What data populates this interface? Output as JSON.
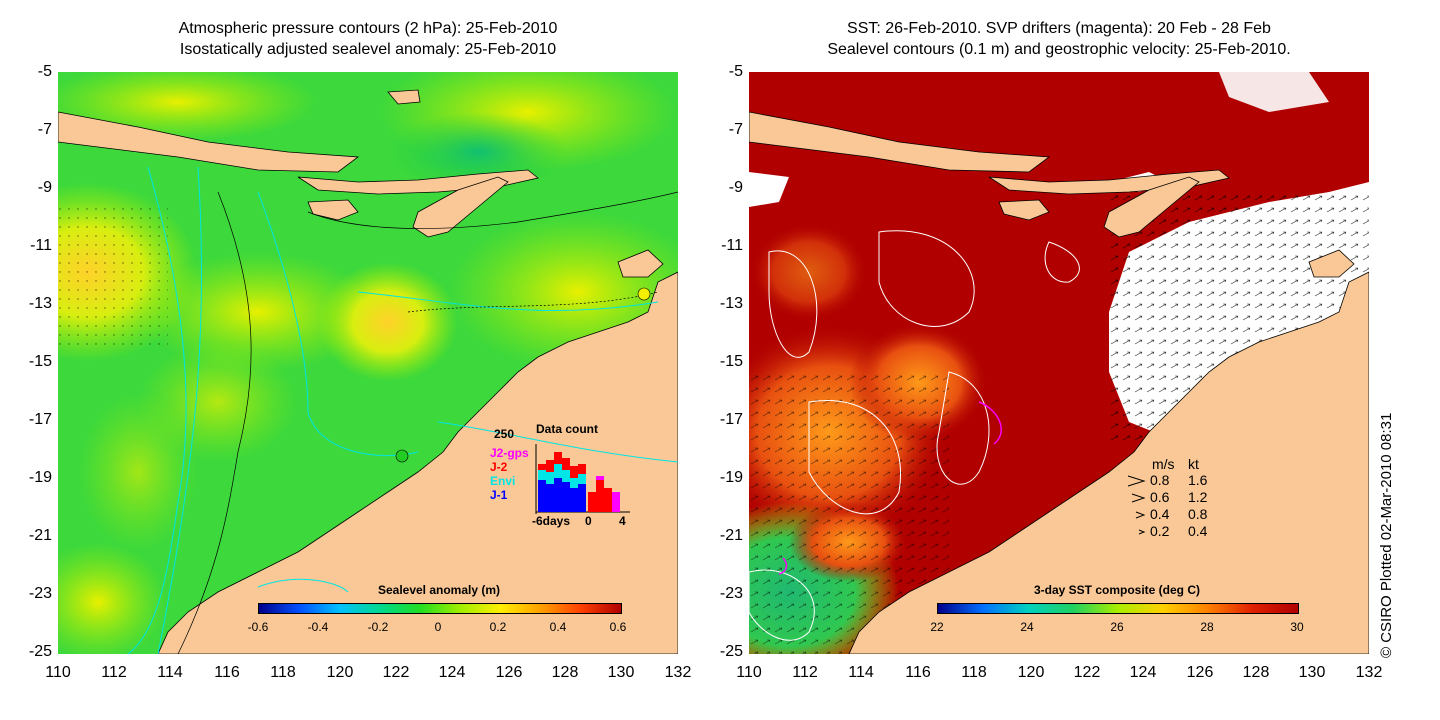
{
  "left_panel": {
    "title_line1": "Atmospheric pressure contours (2 hPa): 25-Feb-2010",
    "title_line2": "Isostatically adjusted sealevel anomaly: 25-Feb-2010",
    "colorbar_title": "Sealevel anomaly (m)",
    "colorbar_ticks": [
      "-0.6",
      "-0.4",
      "-0.2",
      "0",
      "0.2",
      "0.4",
      "0.6"
    ],
    "inset": {
      "title": "Data count",
      "ymax_label": "250",
      "series": [
        {
          "name": "J2-gps",
          "color": "#ff00ff"
        },
        {
          "name": "J-2",
          "color": "#ff0000"
        },
        {
          "name": "Envi",
          "color": "#00e5e5"
        },
        {
          "name": "J-1",
          "color": "#0000ff"
        }
      ],
      "x_labels": [
        "-6days",
        "0",
        "4"
      ]
    }
  },
  "right_panel": {
    "title_line1": "SST: 26-Feb-2010. SVP drifters (magenta): 20 Feb - 28 Feb",
    "title_line2": "Sealevel contours (0.1 m) and geostrophic velocity: 25-Feb-2010.",
    "colorbar_title": "3-day SST composite (deg C)",
    "colorbar_ticks": [
      "22",
      "24",
      "26",
      "28",
      "30"
    ],
    "speed_legend": {
      "header_ms": "m/s",
      "header_kt": "kt",
      "rows": [
        {
          "ms": "0.8",
          "kt": "1.6"
        },
        {
          "ms": "0.6",
          "kt": "1.2"
        },
        {
          "ms": "0.4",
          "kt": "0.8"
        },
        {
          "ms": "0.2",
          "kt": "0.4"
        }
      ]
    }
  },
  "axes": {
    "y_ticks": [
      "-5",
      "-7",
      "-9",
      "-11",
      "-13",
      "-15",
      "-17",
      "-19",
      "-21",
      "-23",
      "-25"
    ],
    "x_ticks": [
      "110",
      "112",
      "114",
      "116",
      "118",
      "120",
      "122",
      "124",
      "126",
      "128",
      "130",
      "132"
    ]
  },
  "credit": "© CSIRO Plotted 02-Mar-2010 08:31",
  "colors": {
    "land": "#f9c896",
    "sla_palette": [
      "#00008b",
      "#0050ff",
      "#00c0ff",
      "#00d890",
      "#22dd22",
      "#a0ee00",
      "#ffee00",
      "#ffa000",
      "#ff4000",
      "#b00000"
    ],
    "sst_palette": [
      "#00008b",
      "#0070ff",
      "#00d0c0",
      "#20d060",
      "#aaee00",
      "#ffd000",
      "#ff8000",
      "#e02000",
      "#b00000"
    ]
  }
}
